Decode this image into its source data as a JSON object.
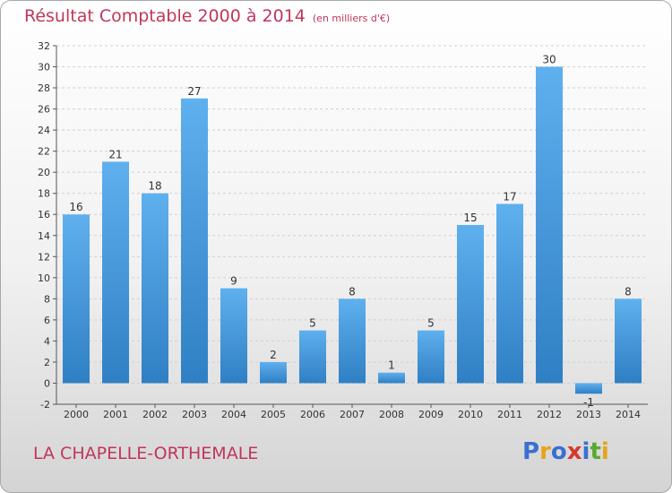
{
  "header": {
    "title": "Résultat Comptable 2000 à 2014",
    "unit": "(en milliers d'€)"
  },
  "footer": {
    "commune": "LA CHAPELLE-ORTHEMALE",
    "logo": "Proxiti"
  },
  "colors": {
    "bar": "#3a8fd6",
    "bar_light": "#5fb0ee",
    "title": "#c0365b",
    "logo_letters": [
      "#3a6fcf",
      "#e8a31a",
      "#3a6fcf",
      "#d33a2f",
      "#3a6fcf",
      "#5aa932",
      "#e8a31a"
    ]
  },
  "chart_data": {
    "type": "bar",
    "categories": [
      "2000",
      "2001",
      "2002",
      "2003",
      "2004",
      "2005",
      "2006",
      "2007",
      "2008",
      "2009",
      "2010",
      "2011",
      "2012",
      "2013",
      "2014"
    ],
    "values": [
      16,
      21,
      18,
      27,
      9,
      2,
      5,
      8,
      1,
      5,
      15,
      17,
      30,
      -1,
      8
    ],
    "ylim": [
      -2,
      32
    ],
    "yticks": [
      -2,
      0,
      2,
      4,
      6,
      8,
      10,
      12,
      14,
      16,
      18,
      20,
      22,
      24,
      26,
      28,
      30,
      32
    ],
    "grid": true
  }
}
